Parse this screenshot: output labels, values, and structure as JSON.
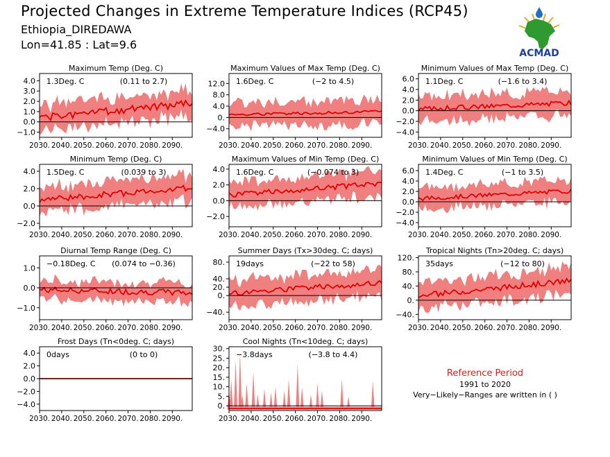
{
  "header": {
    "title": "Projected Changes in Extreme Temperature Indices (RCP45)",
    "location": "Ethiopia_DIREDAWA",
    "coords": "Lon=41.85 : Lat=9.6",
    "logo_text": "ACMAD"
  },
  "reference": {
    "title": "Reference Period",
    "years": "1991 to 2020",
    "note": "Very−Likely−Ranges are written in ( )"
  },
  "colors": {
    "band": "#f08080",
    "line": "#e00000",
    "zero": "#000000",
    "text_red": "#e21a1a"
  },
  "chart_data": [
    {
      "type": "area",
      "title": "Maximum Temp (Deg. C)",
      "summary": "1.3Deg. C",
      "range": "(0.11 to 2.7)",
      "xticks": [
        "2030.",
        "2040.",
        "2050.",
        "2060.",
        "2070.",
        "2080.",
        "2090."
      ],
      "xlim": [
        2030,
        2099
      ],
      "yticks": [
        {
          "v": 4,
          "l": "4.0"
        },
        {
          "v": 3,
          "l": "3.0"
        },
        {
          "v": 2,
          "l": "2.0"
        },
        {
          "v": 1,
          "l": "1.0"
        },
        {
          "v": 0,
          "l": "0.0"
        },
        {
          "v": -1,
          "l": "−1.0"
        }
      ],
      "ylim": [
        -1.5,
        4.7
      ],
      "start": 0.4,
      "end": 1.8,
      "spread": 1.2,
      "noise": 0.35,
      "seed": 1
    },
    {
      "type": "area",
      "title": "Maximum Values of Max Temp (Deg. C)",
      "summary": "1.6Deg. C",
      "range": "(−2 to 4.5)",
      "xticks": [
        "2030.",
        "2040.",
        "2050.",
        "2060.",
        "2070.",
        "2080.",
        "2090."
      ],
      "xlim": [
        2030,
        2099
      ],
      "yticks": [
        {
          "v": 12,
          "l": "12.0"
        },
        {
          "v": 8,
          "l": "8.0"
        },
        {
          "v": 4,
          "l": "4.0"
        },
        {
          "v": 0,
          "l": "0."
        },
        {
          "v": -4,
          "l": "−4.0"
        }
      ],
      "ylim": [
        -7,
        15.5
      ],
      "start": 1.0,
      "end": 2.0,
      "spread": 4.0,
      "noise": 0.5,
      "seed": 2
    },
    {
      "type": "area",
      "title": "Minimum Values of Max Temp (Deg. C)",
      "summary": "1.1Deg. C",
      "range": "(−1.6 to 3.4)",
      "xticks": [
        "2030.",
        "2040.",
        "2050.",
        "2060.",
        "2070.",
        "2080.",
        "2090."
      ],
      "xlim": [
        2030,
        2099
      ],
      "yticks": [
        {
          "v": 6,
          "l": "6.0"
        },
        {
          "v": 4,
          "l": "4.0"
        },
        {
          "v": 2,
          "l": "2.0"
        },
        {
          "v": 0,
          "l": "0.0"
        },
        {
          "v": -2,
          "l": "−2.0"
        },
        {
          "v": -4,
          "l": "−4.0"
        }
      ],
      "ylim": [
        -5,
        7
      ],
      "start": 0.3,
      "end": 1.5,
      "spread": 2.2,
      "noise": 0.45,
      "seed": 3
    },
    {
      "type": "area",
      "title": "Minimum Temp (Deg. C)",
      "summary": "1.5Deg. C",
      "range": "(0.039 to 3)",
      "xticks": [
        "2030.",
        "2040.",
        "2050.",
        "2060.",
        "2070.",
        "2080.",
        "2090."
      ],
      "xlim": [
        2030,
        2099
      ],
      "yticks": [
        {
          "v": 4,
          "l": "4.0"
        },
        {
          "v": 2,
          "l": "2.0"
        },
        {
          "v": 0,
          "l": "0.0"
        },
        {
          "v": -2,
          "l": "−2.0"
        }
      ],
      "ylim": [
        -2.4,
        4.8
      ],
      "start": 0.7,
      "end": 2.1,
      "spread": 1.4,
      "noise": 0.35,
      "seed": 4
    },
    {
      "type": "area",
      "title": "Maximum Values of Min Temp (Deg. C)",
      "summary": "1.6Deg. C",
      "range": "(−0.074 to 3)",
      "xticks": [
        "2030.",
        "2040.",
        "2050.",
        "2060.",
        "2070.",
        "2080.",
        "2090."
      ],
      "xlim": [
        2030,
        2099
      ],
      "yticks": [
        {
          "v": 4,
          "l": "4.0"
        },
        {
          "v": 2,
          "l": "2.0"
        },
        {
          "v": 0,
          "l": "0.0"
        },
        {
          "v": -2,
          "l": "−2.0"
        }
      ],
      "ylim": [
        -3.3,
        4.6
      ],
      "start": 0.7,
      "end": 2.2,
      "spread": 1.5,
      "noise": 0.35,
      "seed": 5
    },
    {
      "type": "area",
      "title": "Minimum Values of Min Temp (Deg. C)",
      "summary": "1.4Deg. C",
      "range": "(−1 to 3.5)",
      "xticks": [
        "2030.",
        "2040.",
        "2050.",
        "2060.",
        "2070.",
        "2080.",
        "2090."
      ],
      "xlim": [
        2030,
        2099
      ],
      "yticks": [
        {
          "v": 6,
          "l": "6.0"
        },
        {
          "v": 4,
          "l": "4.0"
        },
        {
          "v": 2,
          "l": "2.0"
        },
        {
          "v": 0,
          "l": "0.0"
        },
        {
          "v": -2,
          "l": "−2.0"
        },
        {
          "v": -4,
          "l": "−4.0"
        }
      ],
      "ylim": [
        -4.8,
        7.2
      ],
      "start": 0.6,
      "end": 2.1,
      "spread": 2.0,
      "noise": 0.4,
      "seed": 6
    },
    {
      "type": "area",
      "title": "Diurnal Temp Range (Deg. C)",
      "summary": "−0.18Deg. C",
      "range": "(0.074 to −0.36)",
      "xticks": [
        "2030.",
        "2040.",
        "2050.",
        "2060.",
        "2070.",
        "2080.",
        "2090."
      ],
      "xlim": [
        2030,
        2099
      ],
      "yticks": [
        {
          "v": 1,
          "l": "1.0"
        },
        {
          "v": 0,
          "l": "0.0"
        },
        {
          "v": -1,
          "l": "−1.0"
        }
      ],
      "ylim": [
        -1.6,
        1.6
      ],
      "start": -0.1,
      "end": -0.25,
      "spread": 0.45,
      "noise": 0.15,
      "seed": 7
    },
    {
      "type": "area",
      "title": "Summer Days (Tx>30deg. C; days)",
      "summary": "19days",
      "range": "(−22 to 58)",
      "xticks": [
        "2030.",
        "2040.",
        "2050.",
        "2060.",
        "2070.",
        "2080.",
        "2090."
      ],
      "xlim": [
        2030,
        2099
      ],
      "yticks": [
        {
          "v": 80,
          "l": "80."
        },
        {
          "v": 40,
          "l": "40."
        },
        {
          "v": 20,
          "l": "20."
        },
        {
          "v": 0,
          "l": "0."
        },
        {
          "v": -40,
          "l": "−40."
        }
      ],
      "ylim": [
        -58,
        95
      ],
      "start": 5,
      "end": 30,
      "spread": 30,
      "noise": 7,
      "seed": 8
    },
    {
      "type": "area",
      "title": "Tropical Nights (Tn>20deg. C; days)",
      "summary": "35days",
      "range": "(−12 to 80)",
      "xticks": [
        "2030.",
        "2040.",
        "2050.",
        "2060.",
        "2070.",
        "2080.",
        "2090."
      ],
      "xlim": [
        2030,
        2099
      ],
      "yticks": [
        {
          "v": 120,
          "l": "120."
        },
        {
          "v": 80,
          "l": "80."
        },
        {
          "v": 40,
          "l": "40."
        },
        {
          "v": 0,
          "l": "0."
        },
        {
          "v": -40,
          "l": "−40."
        }
      ],
      "ylim": [
        -55,
        125
      ],
      "start": 12,
      "end": 55,
      "spread": 35,
      "noise": 8,
      "seed": 9
    },
    {
      "type": "area",
      "title": "Frost Days (Tn<0deg. C; days)",
      "summary": "0days",
      "range": "(0 to 0)",
      "xticks": [
        "2030.",
        "2040.",
        "2050.",
        "2060.",
        "2070.",
        "2080.",
        "2090."
      ],
      "xlim": [
        2030,
        2099
      ],
      "yticks": [
        {
          "v": 4,
          "l": "4.0"
        },
        {
          "v": 2,
          "l": "2.0"
        },
        {
          "v": 0,
          "l": "0.0"
        },
        {
          "v": -2,
          "l": "−2.0"
        },
        {
          "v": -4,
          "l": "−4.0"
        }
      ],
      "ylim": [
        -5,
        5
      ],
      "start": 0,
      "end": 0,
      "spread": 0,
      "noise": 0,
      "seed": 10
    },
    {
      "type": "area",
      "title": "Cool Nights (Tn<10deg. C; days)",
      "summary": "−3.8days",
      "range": "(−3.8 to 4.4)",
      "xticks": [
        "2030.",
        "2040.",
        "2050.",
        "2060.",
        "2070.",
        "2080.",
        "2090."
      ],
      "xlim": [
        2030,
        2099
      ],
      "yticks": [
        {
          "v": 30,
          "l": "30."
        },
        {
          "v": 25,
          "l": "25."
        },
        {
          "v": 20,
          "l": "20."
        },
        {
          "v": 15,
          "l": "15."
        },
        {
          "v": 10,
          "l": "10."
        },
        {
          "v": 5,
          "l": "5."
        },
        {
          "v": 0,
          "l": "0."
        }
      ],
      "ylim": [
        -2.5,
        31
      ],
      "start": -1.5,
      "end": -1.5,
      "spread": 0,
      "noise": 0,
      "seed": 11,
      "spikes": [
        [
          2030,
          8
        ],
        [
          2031,
          14
        ],
        [
          2033,
          24
        ],
        [
          2035,
          28
        ],
        [
          2036,
          6
        ],
        [
          2038,
          12
        ],
        [
          2041,
          18
        ],
        [
          2043,
          6
        ],
        [
          2046,
          9
        ],
        [
          2049,
          7
        ],
        [
          2051,
          10
        ],
        [
          2055,
          8
        ],
        [
          2057,
          14
        ],
        [
          2061,
          22
        ],
        [
          2063,
          10
        ],
        [
          2067,
          6
        ],
        [
          2070,
          12
        ],
        [
          2072,
          8
        ],
        [
          2081,
          14
        ],
        [
          2084,
          5
        ],
        [
          2095,
          13
        ]
      ]
    }
  ]
}
